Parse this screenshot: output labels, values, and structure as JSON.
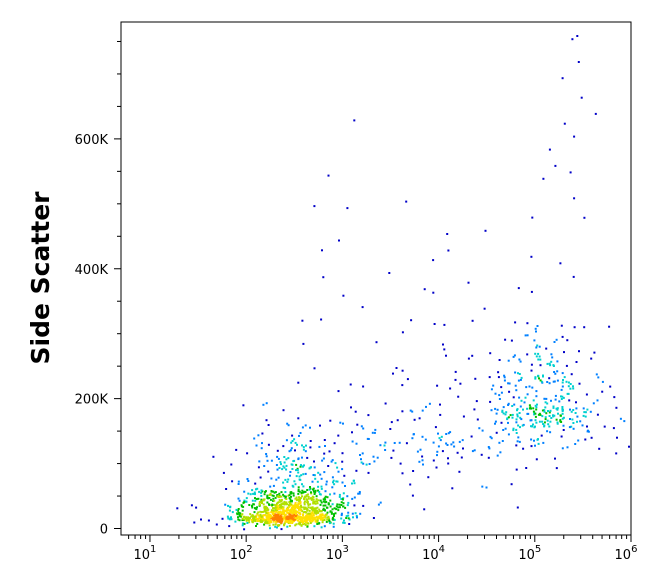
{
  "chart_data": {
    "type": "scatter",
    "title": "",
    "xlabel": "",
    "ylabel": "Side Scatter",
    "x_scale": "log",
    "xlim": [
      5,
      1000000
    ],
    "ylim": [
      -10000,
      780000
    ],
    "x_ticks": [
      {
        "base": "10",
        "exp": "1",
        "value": 10
      },
      {
        "base": "10",
        "exp": "2",
        "value": 100
      },
      {
        "base": "10",
        "exp": "3",
        "value": 1000
      },
      {
        "base": "10",
        "exp": "4",
        "value": 10000
      },
      {
        "base": "10",
        "exp": "5",
        "value": 100000
      },
      {
        "base": "10",
        "exp": "6",
        "value": 1000000
      }
    ],
    "y_ticks": [
      {
        "label": "0",
        "value": 0
      },
      {
        "label": "200K",
        "value": 200000
      },
      {
        "label": "400K",
        "value": 400000
      },
      {
        "label": "600K",
        "value": 600000
      }
    ],
    "grid": false,
    "legend": "none",
    "density_colors": [
      "#0000c8",
      "#0080ff",
      "#00d0d0",
      "#00c000",
      "#b0e000",
      "#ffe000",
      "#ff8000",
      "#ff0000"
    ],
    "populations": [
      {
        "center_log_x": 2.4,
        "center_y": 20000,
        "spread_log_x": 0.28,
        "spread_y": 15000,
        "count": 900
      },
      {
        "center_log_x": 2.55,
        "center_y": 60000,
        "spread_log_x": 0.3,
        "spread_y": 45000,
        "count": 350
      },
      {
        "center_log_x": 5.1,
        "center_y": 190000,
        "spread_log_x": 0.3,
        "spread_y": 70000,
        "count": 300
      },
      {
        "center_log_x": 4.0,
        "center_y": 150000,
        "spread_log_x": 0.8,
        "spread_y": 100000,
        "count": 220
      }
    ],
    "points": [
      {
        "x": 270000,
        "y": 760000
      },
      {
        "x": 240000,
        "y": 755000
      },
      {
        "x": 280000,
        "y": 720000
      },
      {
        "x": 190000,
        "y": 695000
      },
      {
        "x": 300000,
        "y": 665000
      },
      {
        "x": 420000,
        "y": 640000
      },
      {
        "x": 1300,
        "y": 630000
      },
      {
        "x": 200000,
        "y": 625000
      },
      {
        "x": 250000,
        "y": 605000
      },
      {
        "x": 140000,
        "y": 585000
      },
      {
        "x": 160000,
        "y": 560000
      },
      {
        "x": 230000,
        "y": 550000
      },
      {
        "x": 700,
        "y": 545000
      },
      {
        "x": 120000,
        "y": 540000
      },
      {
        "x": 250000,
        "y": 510000
      },
      {
        "x": 4500,
        "y": 505000
      },
      {
        "x": 500,
        "y": 498000
      },
      {
        "x": 1100,
        "y": 495000
      },
      {
        "x": 320000,
        "y": 480000
      },
      {
        "x": 30000,
        "y": 460000
      },
      {
        "x": 12000,
        "y": 455000
      },
      {
        "x": 900,
        "y": 445000
      },
      {
        "x": 600,
        "y": 430000
      },
      {
        "x": 90000,
        "y": 420000
      },
      {
        "x": 180000,
        "y": 410000
      },
      {
        "x": 3000,
        "y": 395000
      },
      {
        "x": 20000,
        "y": 380000
      },
      {
        "x": 7000,
        "y": 370000
      },
      {
        "x": 1000,
        "y": 360000
      }
    ]
  }
}
